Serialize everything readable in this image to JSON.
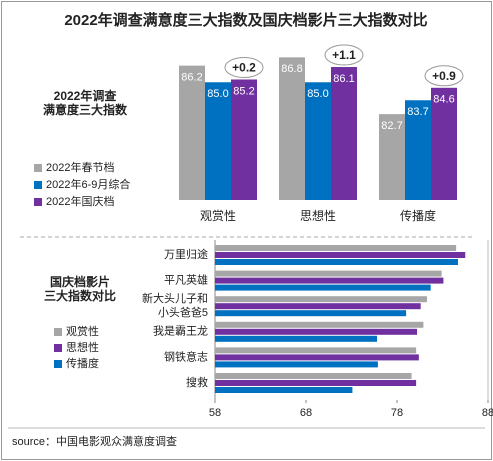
{
  "title": "2022年调查满意度三大指数及国庆档影片三大指数对比",
  "source": "source：中国电影观众满意度调查",
  "chart_data": [
    {
      "type": "bar",
      "title": "2022年调查\n满意度三大指数",
      "categories": [
        "观赏性",
        "思想性",
        "传播度"
      ],
      "series": [
        {
          "name": "2022年春节档",
          "color": "#a6a6a6",
          "values": [
            86.2,
            86.8,
            82.7
          ],
          "value_labels": [
            "86.2",
            "86.8",
            "82.7"
          ]
        },
        {
          "name": "2022年6-9月综合",
          "color": "#0070c0",
          "values": [
            85.0,
            85.0,
            83.7
          ],
          "value_labels": [
            "85.0",
            "85.0",
            "83.7"
          ]
        },
        {
          "name": "2022年国庆档",
          "color": "#7030a0",
          "values": [
            85.2,
            86.1,
            84.6
          ],
          "value_labels": [
            "85.2",
            "86.1",
            "84.6"
          ]
        }
      ],
      "annotations": [
        "+0.2",
        "+1.1",
        "+0.9"
      ],
      "ylim": [
        76.5,
        90
      ]
    },
    {
      "type": "hbar",
      "title": "国庆档影片\n三大指数对比",
      "categories": [
        "万里归途",
        "平凡英雄",
        "新大头儿子和\n小头爸爸5",
        "我是霸王龙",
        "钢铁意志",
        "搜救"
      ],
      "series": [
        {
          "name": "观赏性",
          "color": "#a6a6a6",
          "values": [
            84.5,
            82.9,
            81.3,
            80.9,
            80.1,
            79.6
          ]
        },
        {
          "name": "思想性",
          "color": "#7030a0",
          "values": [
            85.5,
            83.1,
            80.6,
            80.2,
            80.4,
            80.1
          ]
        },
        {
          "name": "传播度",
          "color": "#0070c0",
          "values": [
            84.7,
            81.7,
            79.0,
            75.8,
            75.9,
            73.1
          ]
        }
      ],
      "xlim": [
        58,
        88
      ],
      "xticks": [
        58,
        68,
        78,
        88
      ]
    }
  ]
}
